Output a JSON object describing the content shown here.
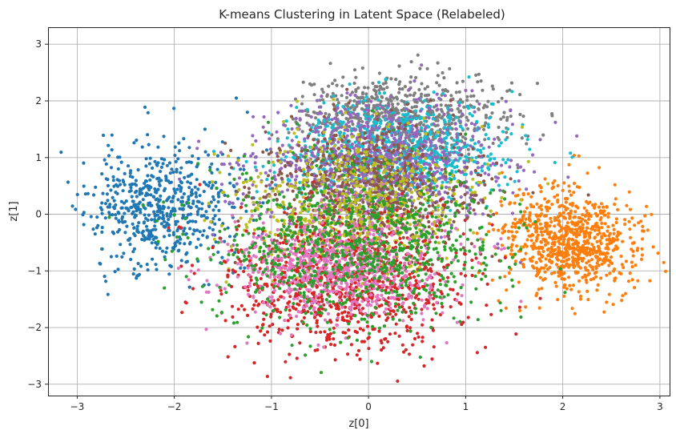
{
  "chart_data": {
    "type": "scatter",
    "title": "K-means Clustering in Latent Space (Relabeled)",
    "xlabel": "z[0]",
    "ylabel": "z[1]",
    "xlim": [
      -3.3,
      3.1
    ],
    "ylim": [
      -3.2,
      3.3
    ],
    "xticks": [
      -3,
      -2,
      -1,
      0,
      1,
      2,
      3
    ],
    "yticks": [
      -3,
      -2,
      -1,
      0,
      1,
      2,
      3
    ],
    "xtick_labels": [
      "−3",
      "−2",
      "−1",
      "0",
      "1",
      "2",
      "3"
    ],
    "ytick_labels": [
      "−3",
      "−2",
      "−1",
      "0",
      "1",
      "2",
      "3"
    ],
    "grid": true,
    "legend": "none",
    "draw_order": [
      0,
      1,
      7,
      9,
      4,
      5,
      8,
      3,
      6,
      2
    ],
    "series": [
      {
        "color": "#1f77b4",
        "n": 600,
        "center": [
          -2.15,
          0.15
        ],
        "spread": [
          0.38,
          0.55
        ],
        "rot": 0.0,
        "seed": 11
      },
      {
        "color": "#ff7f0e",
        "n": 800,
        "center": [
          2.05,
          -0.5
        ],
        "spread": [
          0.33,
          0.45
        ],
        "rot": 0.2,
        "seed": 23
      },
      {
        "color": "#2ca02c",
        "n": 900,
        "center": [
          -0.15,
          -0.55
        ],
        "spread": [
          0.75,
          0.7
        ],
        "rot": 0.0,
        "seed": 37
      },
      {
        "color": "#d62728",
        "n": 900,
        "center": [
          -0.2,
          -1.2
        ],
        "spread": [
          0.6,
          0.62
        ],
        "rot": 0.0,
        "seed": 41
      },
      {
        "color": "#9467bd",
        "n": 1000,
        "center": [
          0.1,
          0.85
        ],
        "spread": [
          0.6,
          0.55
        ],
        "rot": 0.0,
        "seed": 53
      },
      {
        "color": "#8c564b",
        "n": 700,
        "center": [
          0.0,
          0.45
        ],
        "spread": [
          0.55,
          0.55
        ],
        "rot": 0.0,
        "seed": 67
      },
      {
        "color": "#e377c2",
        "n": 800,
        "center": [
          -0.3,
          -0.95
        ],
        "spread": [
          0.55,
          0.45
        ],
        "rot": 0.0,
        "seed": 71
      },
      {
        "color": "#7f7f7f",
        "n": 700,
        "center": [
          0.3,
          1.75
        ],
        "spread": [
          0.55,
          0.38
        ],
        "rot": 0.0,
        "seed": 83
      },
      {
        "color": "#bcbd22",
        "n": 650,
        "center": [
          -0.1,
          0.15
        ],
        "spread": [
          0.6,
          0.6
        ],
        "rot": 0.0,
        "seed": 97
      },
      {
        "color": "#17becf",
        "n": 800,
        "center": [
          0.3,
          1.1
        ],
        "spread": [
          0.55,
          0.45
        ],
        "rot": 0.0,
        "seed": 101
      }
    ]
  }
}
